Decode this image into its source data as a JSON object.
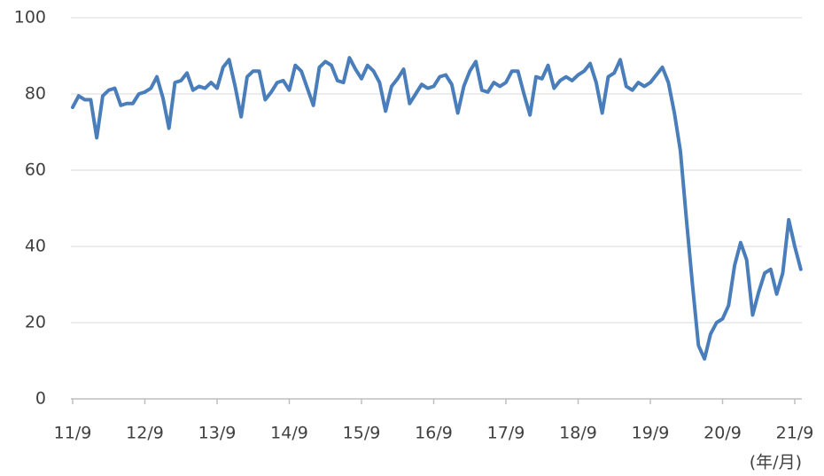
{
  "chart_data": {
    "type": "line",
    "x_label": "(年/月)",
    "categories": [
      "11/9",
      null,
      null,
      null,
      null,
      null,
      null,
      null,
      null,
      null,
      null,
      null,
      "12/9",
      null,
      null,
      null,
      null,
      null,
      null,
      null,
      null,
      null,
      null,
      null,
      "13/9",
      null,
      null,
      null,
      null,
      null,
      null,
      null,
      null,
      null,
      null,
      null,
      "14/9",
      null,
      null,
      null,
      null,
      null,
      null,
      null,
      null,
      null,
      null,
      null,
      "15/9",
      null,
      null,
      null,
      null,
      null,
      null,
      null,
      null,
      null,
      null,
      null,
      "16/9",
      null,
      null,
      null,
      null,
      null,
      null,
      null,
      null,
      null,
      null,
      null,
      "17/9",
      null,
      null,
      null,
      null,
      null,
      null,
      null,
      null,
      null,
      null,
      null,
      "18/9",
      null,
      null,
      null,
      null,
      null,
      null,
      null,
      null,
      null,
      null,
      null,
      "19/9",
      null,
      null,
      null,
      null,
      null,
      null,
      null,
      null,
      null,
      null,
      null,
      "20/9",
      null,
      null,
      null,
      null,
      null,
      null,
      null,
      null,
      null,
      null,
      null,
      "21/9",
      null
    ],
    "values": [
      76.5,
      79.5,
      78.5,
      78.5,
      68.5,
      79.5,
      81,
      81.5,
      77,
      77.5,
      77.5,
      80,
      80.5,
      81.5,
      84.5,
      79,
      71,
      83,
      83.5,
      85.5,
      81,
      82,
      81.5,
      83,
      81.5,
      87,
      89,
      82,
      74,
      84.5,
      86,
      86,
      78.5,
      80.5,
      83,
      83.5,
      81,
      87.5,
      86,
      81.5,
      77,
      87,
      88.5,
      87.5,
      83.5,
      83,
      89.5,
      86.5,
      84,
      87.5,
      86,
      83,
      75.5,
      82,
      84,
      86.5,
      77.5,
      80,
      82.5,
      81.5,
      82,
      84.5,
      85,
      82.5,
      75,
      82,
      86,
      88.5,
      81,
      80.5,
      83,
      82,
      83,
      86,
      86,
      80,
      74.5,
      84.5,
      84,
      87.5,
      81.5,
      83.5,
      84.5,
      83.5,
      85,
      86,
      88,
      83,
      75,
      84.5,
      85.5,
      89,
      82,
      81,
      83,
      82,
      83,
      85,
      87,
      83,
      75,
      65,
      47,
      30,
      14,
      10.5,
      17,
      20,
      21,
      24.5,
      35,
      41,
      36.5,
      22,
      28,
      33,
      34,
      27.5,
      33,
      47,
      40,
      34
    ],
    "color": "#4a7ebb",
    "ylim": [
      0,
      100
    ],
    "yticks": [
      0,
      20,
      40,
      60,
      80,
      100
    ],
    "grid": true
  }
}
